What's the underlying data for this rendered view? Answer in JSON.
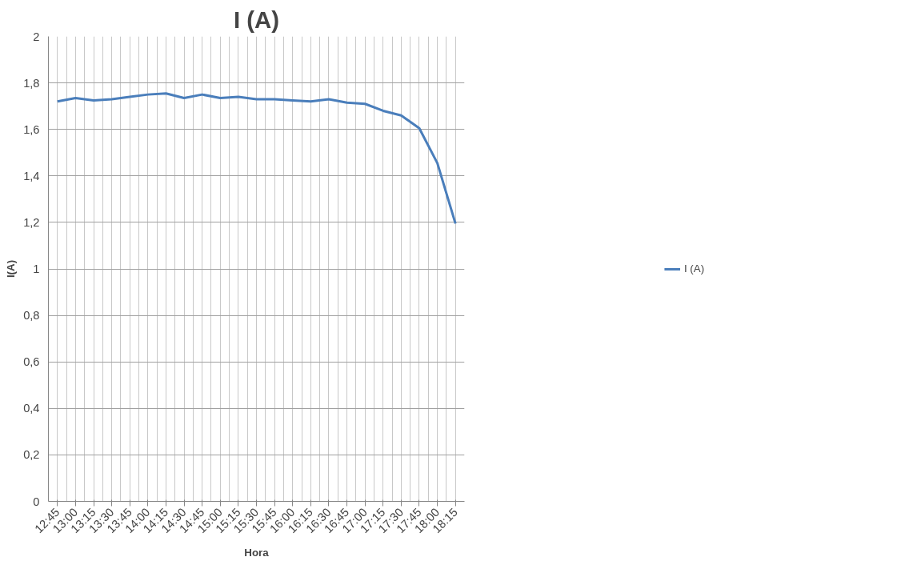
{
  "chart_data": {
    "type": "line",
    "title": "I (A)",
    "xlabel": "Hora",
    "ylabel": "I(A)",
    "categories": [
      "12:45",
      "13:00",
      "13:15",
      "13:30",
      "13:45",
      "14:00",
      "14:15",
      "14:30",
      "14:45",
      "15:00",
      "15:15",
      "15:30",
      "15:45",
      "16:00",
      "16:15",
      "16:30",
      "16:45",
      "17:00",
      "17:15",
      "17:30",
      "17:45",
      "18:00",
      "18:15"
    ],
    "series": [
      {
        "name": "I (A)",
        "color": "#4a7ebb",
        "values": [
          1.72,
          1.735,
          1.725,
          1.73,
          1.74,
          1.75,
          1.755,
          1.735,
          1.75,
          1.735,
          1.74,
          1.73,
          1.73,
          1.725,
          1.72,
          1.73,
          1.715,
          1.71,
          1.68,
          1.66,
          1.605,
          1.455,
          1.195
        ]
      }
    ],
    "ylim": [
      0,
      2
    ],
    "yticks": [
      0,
      {
        "value": 0.2,
        "label": "0,2"
      },
      {
        "value": 0.4,
        "label": "0,4"
      },
      {
        "value": 0.6,
        "label": "0,6"
      },
      {
        "value": 0.8,
        "label": "0,8"
      },
      1,
      {
        "value": 1.2,
        "label": "1,2"
      },
      {
        "value": 1.4,
        "label": "1,4"
      },
      {
        "value": 1.6,
        "label": "1,6"
      },
      {
        "value": 1.8,
        "label": "1,8"
      },
      2
    ],
    "grid": true,
    "legend": "right",
    "marker": "none",
    "line_style": "solid"
  }
}
